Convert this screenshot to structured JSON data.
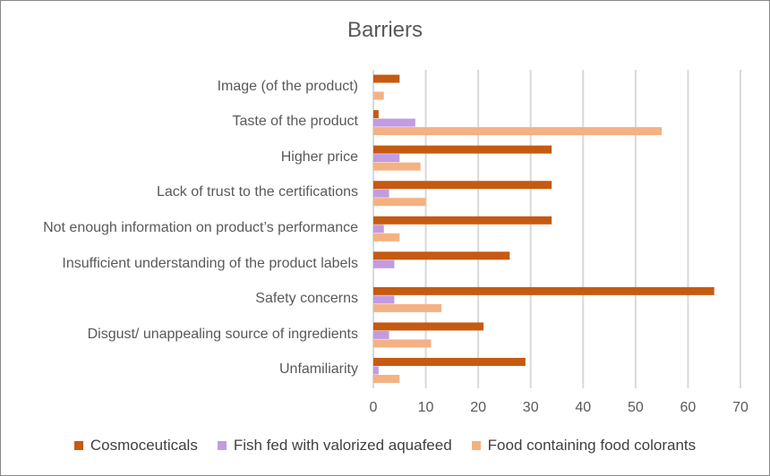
{
  "chart_data": {
    "type": "bar",
    "orientation": "horizontal",
    "title": "Barriers",
    "xlabel": "",
    "ylabel": "",
    "xlim": [
      0,
      70
    ],
    "xticks": [
      0,
      10,
      20,
      30,
      40,
      50,
      60,
      70
    ],
    "grid": true,
    "legend_position": "bottom",
    "categories": [
      "Image (of the product)",
      "Taste of the product",
      "Higher price",
      "Lack of trust to the certifications",
      "Not enough information on product’s performance",
      "Insufficient understanding of the product labels",
      "Safety concerns",
      "Disgust/ unappealing source of ingredients",
      "Unfamiliarity"
    ],
    "series": [
      {
        "name": "Cosmoceuticals",
        "color": "#C55A11",
        "values": [
          5,
          1,
          34,
          34,
          34,
          26,
          65,
          21,
          29
        ]
      },
      {
        "name": "Fish fed with valorized aquafeed",
        "color": "#C39BE0",
        "values": [
          0,
          8,
          5,
          3,
          2,
          4,
          4,
          3,
          1
        ]
      },
      {
        "name": "Food containing food colorants",
        "color": "#F4B183",
        "values": [
          2,
          55,
          9,
          10,
          5,
          0,
          13,
          11,
          5
        ]
      }
    ]
  }
}
